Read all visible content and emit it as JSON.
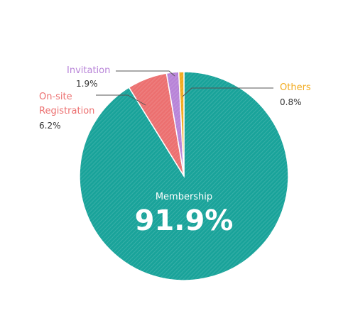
{
  "chart_data": {
    "type": "pie",
    "categories": [
      "Membership",
      "On-site Registration",
      "Invitation",
      "Others"
    ],
    "values": [
      91.9,
      6.2,
      1.9,
      0.8
    ],
    "value_labels": [
      "91.9%",
      "6.2%",
      "1.9%",
      "0.8%"
    ],
    "colors": [
      "#19a39a",
      "#ec7070",
      "#b884d8",
      "#f2ab1e"
    ]
  }
}
